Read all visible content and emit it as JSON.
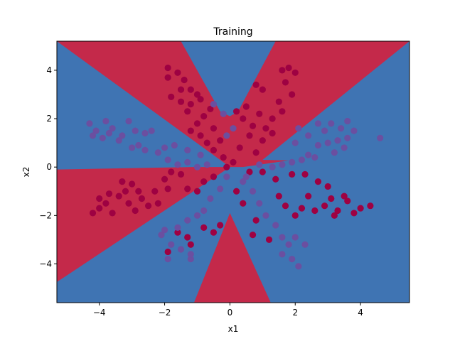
{
  "chart_data": {
    "type": "scatter",
    "title": "Training",
    "xlabel": "x1",
    "ylabel": "x2",
    "xlim": [
      -5.3,
      5.5
    ],
    "ylim": [
      -5.6,
      5.2
    ],
    "xticks": [
      -4,
      -2,
      0,
      2,
      4
    ],
    "yticks": [
      -4,
      -2,
      0,
      2,
      4
    ],
    "grid": false,
    "legend": "none",
    "background": {
      "description": "decision boundary regions",
      "colors": {
        "class_0": "#c4294a",
        "class_1": "#3f74b3"
      }
    },
    "point_colors": {
      "class_0": "#9e0142",
      "class_1": "#6b4fa0"
    },
    "series": [
      {
        "values": [
          [
            -1.9,
            4.1
          ],
          [
            -1.6,
            3.9
          ],
          [
            -1.4,
            3.6
          ],
          [
            -1.9,
            3.7
          ],
          [
            -1.2,
            3.2
          ],
          [
            -1.0,
            3.0
          ],
          [
            -1.5,
            3.2
          ],
          [
            -0.9,
            2.8
          ],
          [
            -1.2,
            2.6
          ],
          [
            -1.8,
            2.9
          ],
          [
            -1.5,
            2.7
          ],
          [
            -0.6,
            2.4
          ],
          [
            -0.8,
            2.1
          ],
          [
            -1.3,
            2.3
          ],
          [
            -1.0,
            1.8
          ],
          [
            -0.5,
            1.6
          ],
          [
            -1.2,
            1.5
          ],
          [
            -0.9,
            1.3
          ],
          [
            -0.3,
            1.1
          ],
          [
            -0.7,
            1.0
          ],
          [
            -0.5,
            0.7
          ],
          [
            -0.2,
            0.4
          ],
          [
            0.1,
            0.2
          ],
          [
            -0.1,
            0.0
          ],
          [
            0.2,
            2.3
          ],
          [
            0.5,
            2.5
          ],
          [
            0.4,
            2.0
          ],
          [
            0.7,
            1.7
          ],
          [
            0.9,
            2.2
          ],
          [
            1.1,
            1.6
          ],
          [
            1.3,
            2.0
          ],
          [
            1.5,
            2.7
          ],
          [
            1.6,
            2.3
          ],
          [
            1.9,
            3.0
          ],
          [
            1.7,
            3.5
          ],
          [
            2.0,
            3.9
          ],
          [
            1.6,
            4.0
          ],
          [
            0.8,
            3.4
          ],
          [
            1.0,
            3.2
          ],
          [
            1.8,
            4.1
          ],
          [
            0.6,
            1.3
          ],
          [
            1.0,
            1.1
          ],
          [
            0.3,
            0.8
          ],
          [
            0.8,
            0.6
          ],
          [
            1.3,
            1.4
          ],
          [
            -4.2,
            -1.9
          ],
          [
            -4.0,
            -1.3
          ],
          [
            -3.8,
            -1.5
          ],
          [
            -3.6,
            -1.9
          ],
          [
            -3.4,
            -1.2
          ],
          [
            -3.3,
            -0.6
          ],
          [
            -3.0,
            -0.7
          ],
          [
            -3.2,
            -1.0
          ],
          [
            -2.9,
            -1.8
          ],
          [
            -2.7,
            -1.3
          ],
          [
            -2.5,
            -1.6
          ],
          [
            -2.3,
            -1.0
          ],
          [
            -2.0,
            -0.5
          ],
          [
            -1.8,
            -0.2
          ],
          [
            -1.5,
            -0.3
          ],
          [
            -1.3,
            -0.9
          ],
          [
            -1.0,
            -1.0
          ],
          [
            -0.8,
            -0.6
          ],
          [
            -0.5,
            -0.4
          ],
          [
            -2.2,
            -1.5
          ],
          [
            -1.9,
            -0.9
          ],
          [
            -3.1,
            -1.5
          ],
          [
            -4.0,
            -1.7
          ],
          [
            -3.7,
            -1.1
          ],
          [
            -2.8,
            -1.0
          ],
          [
            -1.9,
            -3.5
          ],
          [
            -1.6,
            -2.7
          ],
          [
            -1.3,
            -2.9
          ],
          [
            -0.8,
            -2.5
          ],
          [
            -0.5,
            -2.7
          ],
          [
            -0.3,
            -2.4
          ],
          [
            -1.2,
            -3.2
          ],
          [
            0.7,
            -2.8
          ],
          [
            1.2,
            -3.0
          ],
          [
            0.8,
            -2.2
          ],
          [
            0.4,
            -1.5
          ],
          [
            0.2,
            -1.0
          ],
          [
            1.5,
            -1.2
          ],
          [
            1.7,
            -1.6
          ],
          [
            2.0,
            -2.0
          ],
          [
            2.4,
            -1.2
          ],
          [
            2.6,
            -1.8
          ],
          [
            2.9,
            -1.6
          ],
          [
            3.1,
            -1.3
          ],
          [
            3.3,
            -1.8
          ],
          [
            3.5,
            -1.2
          ],
          [
            3.8,
            -1.9
          ],
          [
            4.0,
            -1.7
          ],
          [
            3.6,
            -1.4
          ],
          [
            3.0,
            -0.8
          ],
          [
            2.7,
            -0.6
          ],
          [
            2.3,
            -0.3
          ],
          [
            1.9,
            -0.3
          ],
          [
            1.4,
            -0.5
          ],
          [
            1.0,
            -0.2
          ],
          [
            0.6,
            -0.2
          ],
          [
            3.2,
            -2.0
          ],
          [
            2.2,
            -1.7
          ],
          [
            4.3,
            -1.6
          ]
        ]
      },
      {
        "values": [
          [
            -4.3,
            1.8
          ],
          [
            -4.1,
            1.5
          ],
          [
            -3.8,
            1.9
          ],
          [
            -3.6,
            1.6
          ],
          [
            -3.9,
            1.2
          ],
          [
            -3.4,
            1.1
          ],
          [
            -3.1,
            1.9
          ],
          [
            -2.9,
            1.5
          ],
          [
            -2.6,
            1.4
          ],
          [
            -2.4,
            1.5
          ],
          [
            -3.0,
            0.8
          ],
          [
            -2.6,
            0.7
          ],
          [
            -2.2,
            0.6
          ],
          [
            -1.9,
            0.3
          ],
          [
            -1.6,
            0.1
          ],
          [
            -1.3,
            0.2
          ],
          [
            -1.0,
            0.0
          ],
          [
            -0.7,
            0.1
          ],
          [
            -3.3,
            1.3
          ],
          [
            -2.8,
            0.9
          ],
          [
            -1.7,
            0.9
          ],
          [
            -1.3,
            0.7
          ],
          [
            -0.9,
            0.5
          ],
          [
            -4.2,
            1.3
          ],
          [
            -3.7,
            1.4
          ],
          [
            -2.0,
            0.8
          ],
          [
            -2.1,
            -2.8
          ],
          [
            -1.8,
            -3.2
          ],
          [
            -1.5,
            -3.4
          ],
          [
            -1.2,
            -3.8
          ],
          [
            -1.6,
            -2.5
          ],
          [
            -1.3,
            -2.2
          ],
          [
            -1.0,
            -2.0
          ],
          [
            -0.8,
            -1.8
          ],
          [
            -0.6,
            -1.3
          ],
          [
            -0.3,
            -0.9
          ],
          [
            -0.1,
            -0.4
          ],
          [
            -1.9,
            -3.8
          ],
          [
            -1.2,
            -3.6
          ],
          [
            -2.0,
            -2.6
          ],
          [
            0.4,
            -0.6
          ],
          [
            0.7,
            -1.0
          ],
          [
            0.9,
            -1.5
          ],
          [
            1.1,
            -2.0
          ],
          [
            1.4,
            -2.4
          ],
          [
            1.6,
            -2.9
          ],
          [
            1.8,
            -3.2
          ],
          [
            1.9,
            -3.8
          ],
          [
            2.1,
            -4.1
          ],
          [
            2.3,
            -3.2
          ],
          [
            1.6,
            -3.6
          ],
          [
            2.0,
            -2.9
          ],
          [
            0.5,
            -0.4
          ],
          [
            2.1,
            1.6
          ],
          [
            2.4,
            1.3
          ],
          [
            2.7,
            1.8
          ],
          [
            2.9,
            1.5
          ],
          [
            3.1,
            1.8
          ],
          [
            3.4,
            1.6
          ],
          [
            3.6,
            1.9
          ],
          [
            3.8,
            1.5
          ],
          [
            3.3,
            1.1
          ],
          [
            3.0,
            1.0
          ],
          [
            2.7,
            0.9
          ],
          [
            2.4,
            0.5
          ],
          [
            2.2,
            0.3
          ],
          [
            1.9,
            0.2
          ],
          [
            1.6,
            0.1
          ],
          [
            1.3,
            0.0
          ],
          [
            0.9,
            0.1
          ],
          [
            4.6,
            1.2
          ],
          [
            3.5,
            0.8
          ],
          [
            3.2,
            0.6
          ],
          [
            2.0,
            1.0
          ],
          [
            3.6,
            1.2
          ],
          [
            2.6,
            0.4
          ],
          [
            -0.2,
            2.2
          ],
          [
            0.1,
            1.6
          ],
          [
            -0.5,
            2.6
          ],
          [
            -0.1,
            1.3
          ]
        ]
      }
    ]
  }
}
